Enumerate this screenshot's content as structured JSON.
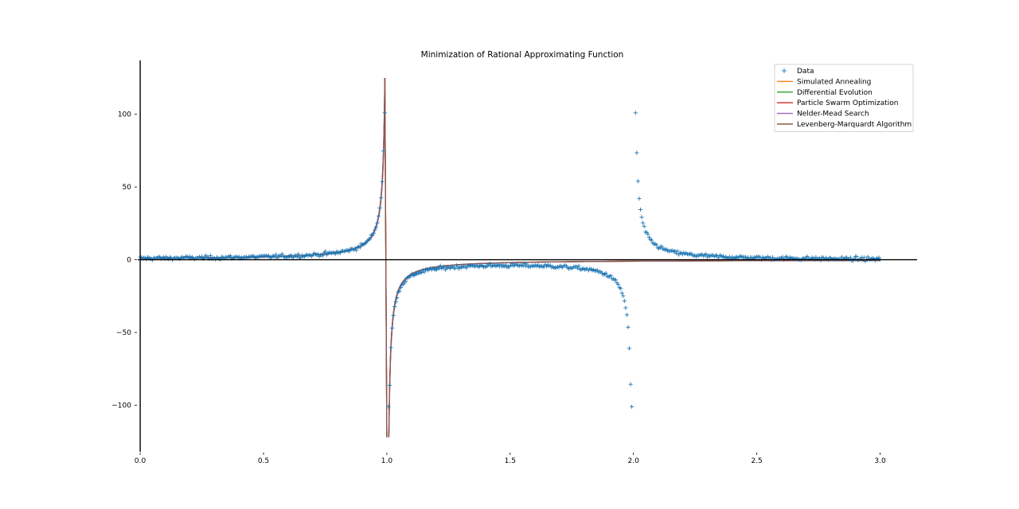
{
  "chart_data": {
    "type": "scatter",
    "title": "Minimization of Rational Approximating Function",
    "xlabel": "",
    "ylabel": "",
    "xlim": [
      -0.01,
      3.15
    ],
    "ylim": [
      -132,
      137
    ],
    "x_ticks": [
      0.0,
      0.5,
      1.0,
      1.5,
      2.0,
      2.5,
      3.0
    ],
    "x_tick_labels": [
      "0.0",
      "0.5",
      "1.0",
      "1.5",
      "2.0",
      "2.5",
      "3.0"
    ],
    "y_ticks": [
      -100,
      -50,
      0,
      50,
      100
    ],
    "y_tick_labels": [
      "−100",
      "−50",
      "0",
      "50",
      "100"
    ],
    "axes_spines": "centered at origin (x=0, y=0)",
    "grid": false,
    "legend_position": "top-right",
    "data_model": {
      "description": "Noisy samples of a rational function with poles at x=1 and x=2",
      "x_range": [
        0.0,
        3.0
      ],
      "n_points": 600
    },
    "series": [
      {
        "name": "Data",
        "kind": "scatter",
        "marker": "+",
        "color": "#1f77b4"
      },
      {
        "name": "Simulated Annealing",
        "kind": "line",
        "color": "#ff7f0e"
      },
      {
        "name": "Differential Evolution",
        "kind": "line",
        "color": "#2ca02c"
      },
      {
        "name": "Particle Swarm Optimization",
        "kind": "line",
        "color": "#d62728"
      },
      {
        "name": "Nelder-Mead Search",
        "kind": "line",
        "color": "#9467bd"
      },
      {
        "name": "Levenberg-Marquardt Algorithm",
        "kind": "line",
        "color": "#8c564b"
      }
    ],
    "fit_model": {
      "description": "Fitted curves: single pole at x=1, approx y = 1/(1-x)",
      "peak_value": 125,
      "trough_value": -122
    }
  }
}
